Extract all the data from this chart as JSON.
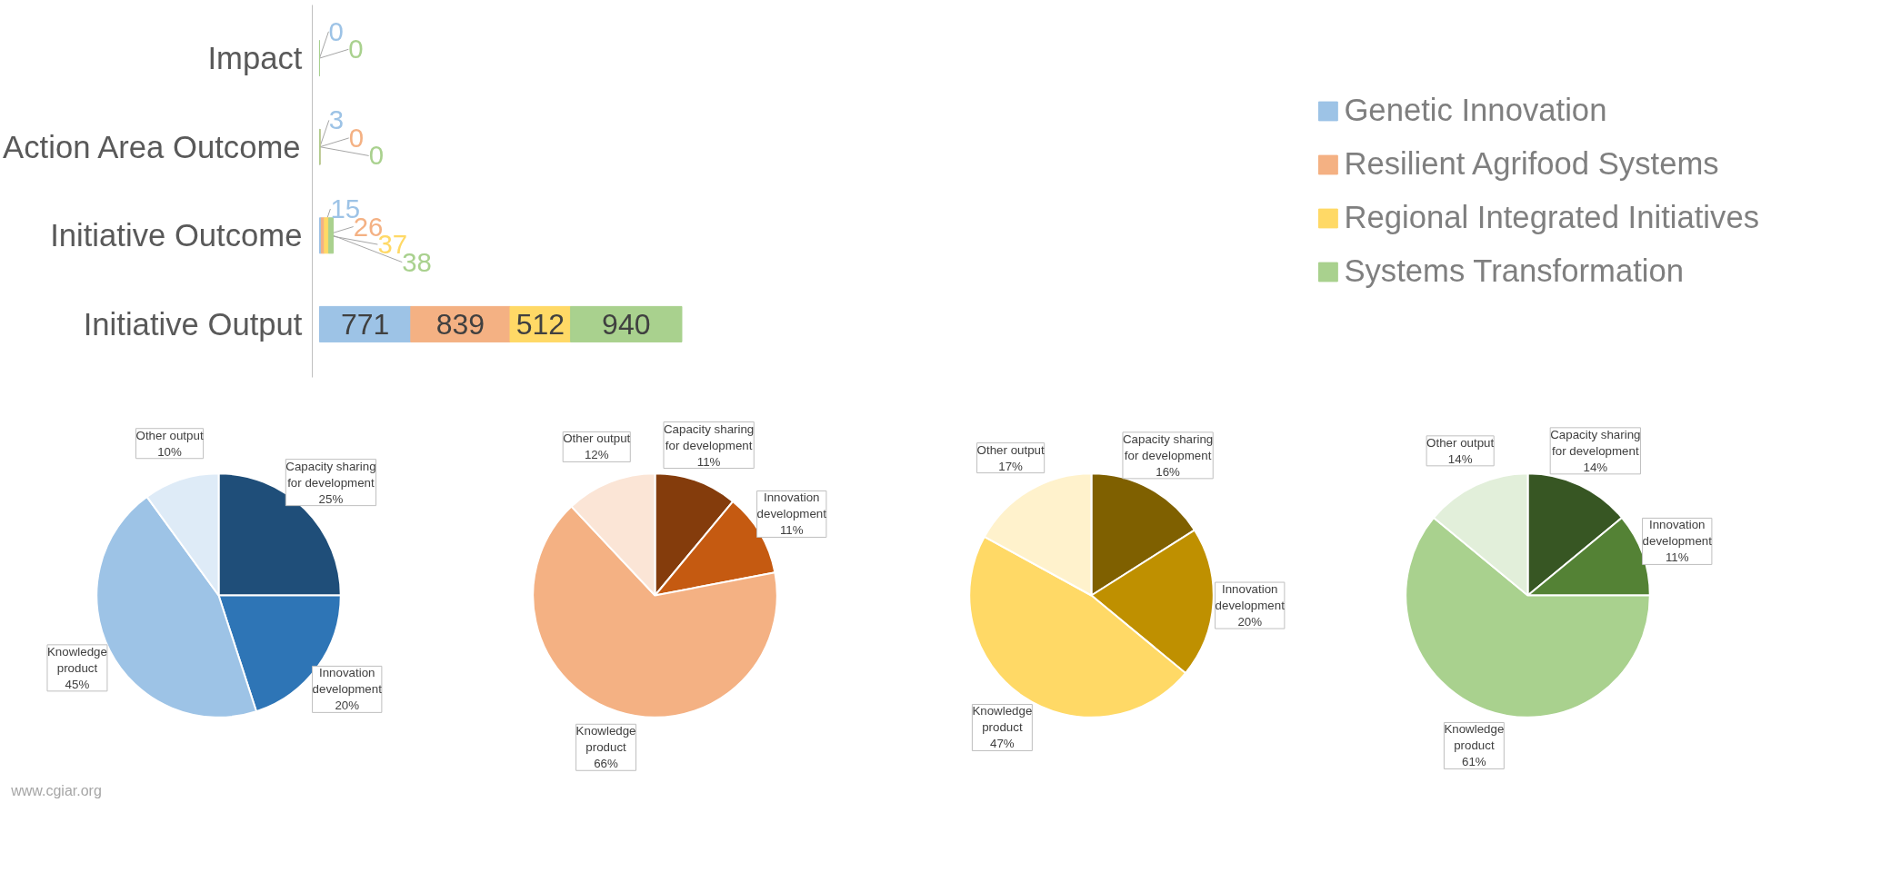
{
  "chart_data": [
    {
      "type": "bar",
      "orientation": "horizontal",
      "stacked": true,
      "categories": [
        "Impact",
        "Action Area Outcome",
        "Initiative Outcome",
        "Initiative Output"
      ],
      "series": [
        {
          "name": "Genetic Innovation",
          "color": "#9dc3e6",
          "values": [
            0,
            3,
            15,
            771
          ]
        },
        {
          "name": "Resilient Agrifood Systems",
          "color": "#f4b183",
          "values": [
            null,
            0,
            26,
            839
          ]
        },
        {
          "name": "Regional Integrated Initiatives",
          "color": "#ffd966",
          "values": [
            null,
            null,
            37,
            512
          ]
        },
        {
          "name": "Systems Transformation",
          "color": "#a9d18e",
          "values": [
            0,
            0,
            38,
            940
          ]
        }
      ],
      "data_labels": true,
      "legend": "right",
      "tick_labels": "y",
      "grid": false
    },
    {
      "type": "pie",
      "categories": [
        "Capacity sharing for development",
        "Innovation development",
        "Knowledge product",
        "Other output"
      ],
      "values": [
        25,
        20,
        45,
        10
      ],
      "value_labels": [
        "25%",
        "20%",
        "45%",
        "10%"
      ],
      "colors": [
        "#1f4e79",
        "#2e75b6",
        "#9dc3e6",
        "#deebf7"
      ],
      "annotations": [
        "www.cgiar.org"
      ]
    },
    {
      "type": "pie",
      "categories": [
        "Capacity sharing for development",
        "Innovation development",
        "Knowledge product",
        "Other output"
      ],
      "values": [
        11,
        11,
        66,
        12
      ],
      "value_labels": [
        "11%",
        "11%",
        "66%",
        "12%"
      ],
      "colors": [
        "#843c0c",
        "#c55a11",
        "#f4b183",
        "#fbe5d6"
      ]
    },
    {
      "type": "pie",
      "categories": [
        "Capacity sharing for development",
        "Innovation development",
        "Knowledge product",
        "Other output"
      ],
      "values": [
        16,
        20,
        47,
        17
      ],
      "value_labels": [
        "16%",
        "20%",
        "47%",
        "17%"
      ],
      "colors": [
        "#7f6000",
        "#bf9000",
        "#ffd966",
        "#fff2cc"
      ]
    },
    {
      "type": "pie",
      "categories": [
        "Capacity sharing for development",
        "Innovation development",
        "Knowledge product",
        "Other output"
      ],
      "values": [
        14,
        11,
        61,
        14
      ],
      "value_labels": [
        "14%",
        "11%",
        "61%",
        "14%"
      ],
      "colors": [
        "#375623",
        "#548235",
        "#a9d18e",
        "#e2efda"
      ]
    }
  ]
}
